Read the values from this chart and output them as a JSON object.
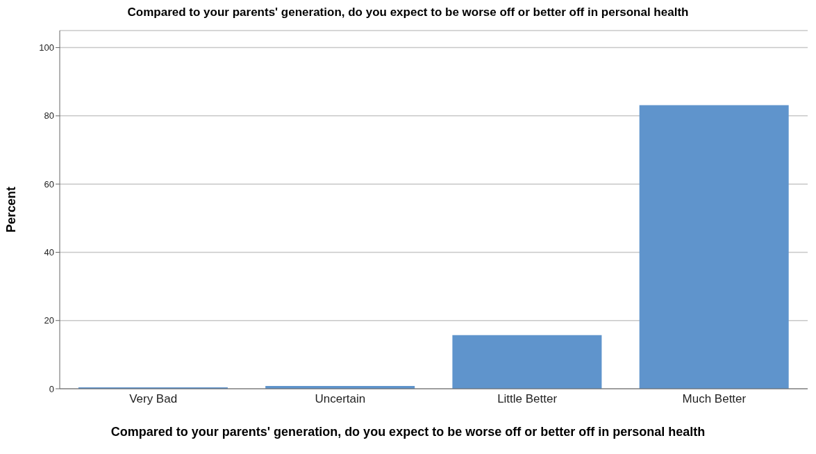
{
  "chart_data": {
    "type": "bar",
    "title": "Compared to your parents' generation, do you expect to be worse off or better off in personal health",
    "xlabel": "Compared to your parents' generation, do you expect to be worse off or better off in personal health",
    "ylabel": "Percent",
    "categories": [
      "Very Bad",
      "Uncertain",
      "Little Better",
      "Much Better"
    ],
    "values": [
      0.4,
      0.8,
      15.7,
      83.1
    ],
    "color": "#5f94cc",
    "ylim": [
      0,
      105
    ],
    "yticks": [
      0,
      20,
      40,
      60,
      80,
      100
    ],
    "grid": "y"
  }
}
